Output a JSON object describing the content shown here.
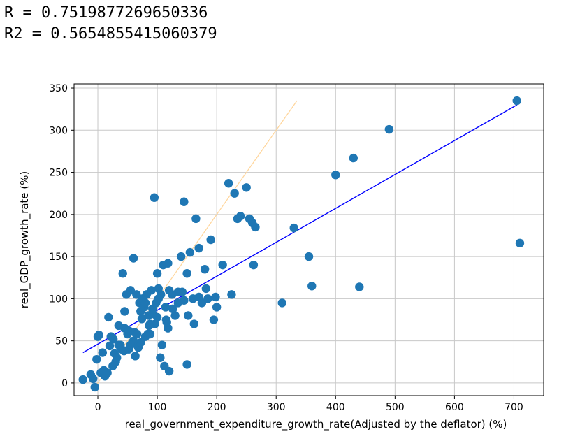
{
  "output": {
    "r_line": "R = 0.7519877269650336",
    "r2_line": "R2 = 0.5654855415060379"
  },
  "colors": {
    "points": "#1f77b4",
    "fit_line": "#0000ff",
    "identity_line": "#ffd59a",
    "grid": "#c8c8c8"
  },
  "chart_data": {
    "type": "scatter",
    "title": "",
    "xlabel": "real_government_expenditure_growth_rate(Adjusted by the deflator) (%)",
    "ylabel": "real_GDP_growth_rate (%)",
    "xlim": [
      -40,
      750
    ],
    "ylim": [
      -15,
      355
    ],
    "xticks": [
      0,
      100,
      200,
      300,
      400,
      500,
      600,
      700
    ],
    "yticks": [
      0,
      50,
      100,
      150,
      200,
      250,
      300,
      350
    ],
    "grid": true,
    "fit_line": {
      "x": [
        -25,
        705
      ],
      "y": [
        36,
        330
      ]
    },
    "identity_line": {
      "x": [
        -5,
        335
      ],
      "y": [
        -5,
        335
      ]
    },
    "points": {
      "x": [
        -25,
        -12,
        -5,
        0,
        5,
        12,
        18,
        22,
        28,
        30,
        35,
        38,
        40,
        42,
        45,
        48,
        50,
        52,
        55,
        58,
        60,
        62,
        65,
        68,
        70,
        72,
        75,
        78,
        80,
        82,
        85,
        88,
        90,
        92,
        95,
        98,
        100,
        102,
        105,
        108,
        110,
        112,
        115,
        118,
        120,
        125,
        130,
        135,
        140,
        145,
        150,
        155,
        160,
        165,
        170,
        175,
        180,
        185,
        190,
        195,
        200,
        210,
        220,
        225,
        230,
        235,
        240,
        250,
        255,
        260,
        262,
        265,
        310,
        330,
        355,
        360,
        400,
        430,
        440,
        490,
        705,
        710,
        -8,
        2,
        10,
        16,
        25,
        32,
        44,
        52,
        63,
        72,
        84,
        96,
        106,
        116,
        126,
        142,
        152,
        162,
        182,
        198,
        100,
        120,
        80,
        60,
        88,
        114,
        45,
        55,
        35,
        26,
        20,
        8,
        -2,
        150,
        170,
        145,
        135,
        118,
        102,
        92,
        86,
        74,
        66
      ],
      "y": [
        4,
        10,
        -5,
        55,
        12,
        8,
        78,
        55,
        35,
        25,
        45,
        45,
        40,
        130,
        65,
        105,
        58,
        40,
        110,
        48,
        148,
        60,
        105,
        42,
        95,
        85,
        100,
        90,
        55,
        105,
        80,
        70,
        110,
        88,
        220,
        95,
        130,
        100,
        30,
        45,
        140,
        20,
        75,
        65,
        110,
        105,
        80,
        95,
        150,
        215,
        130,
        155,
        100,
        195,
        160,
        95,
        135,
        100,
        170,
        75,
        90,
        140,
        237,
        105,
        225,
        195,
        198,
        232,
        195,
        190,
        140,
        185,
        95,
        184,
        150,
        115,
        247,
        267,
        114,
        301,
        335,
        166,
        5,
        57,
        15,
        12,
        20,
        30,
        38,
        62,
        32,
        48,
        58,
        70,
        105,
        72,
        88,
        108,
        80,
        70,
        112,
        102,
        78,
        14,
        95,
        50,
        58,
        90,
        85,
        45,
        68,
        52,
        44,
        36,
        28,
        22,
        102,
        98,
        108,
        142,
        112,
        82,
        68,
        76,
        58
      ]
    }
  }
}
